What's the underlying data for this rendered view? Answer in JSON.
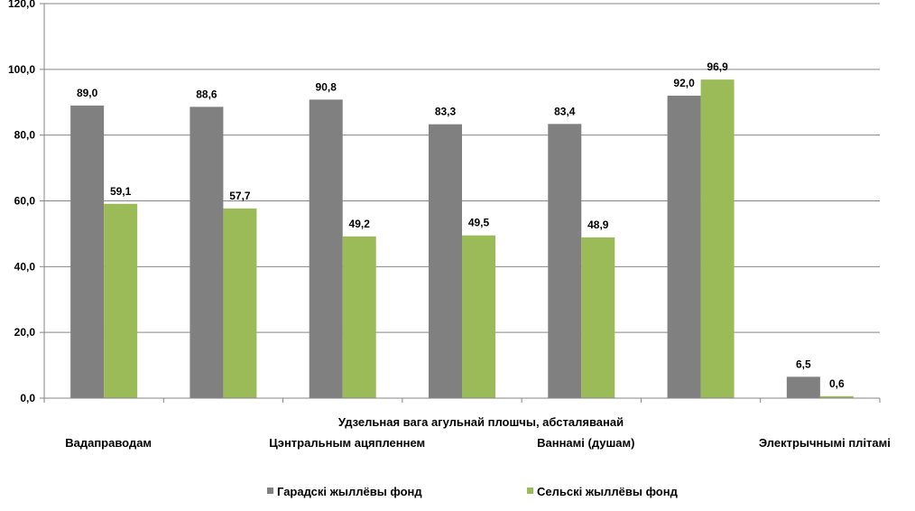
{
  "chart_data": {
    "type": "bar",
    "title": "",
    "xlabel": "Удзельная вага агульнай плошчы, абсталяванай",
    "ylabel": "",
    "ylim": [
      0,
      120
    ],
    "yticks": [
      "0,0",
      "20,0",
      "40,0",
      "60,0",
      "80,0",
      "100,0",
      "120,0"
    ],
    "grid": true,
    "legend_position": "bottom",
    "group_count": 7,
    "category_labels": [
      {
        "label": "Вадаправодам",
        "group": 0
      },
      {
        "label": "Цэнтральным ацяпленнем",
        "group": 2
      },
      {
        "label": "Ваннамі (душам)",
        "group": 4
      },
      {
        "label": "Электрычнымі плітамі",
        "group": 6
      }
    ],
    "series": [
      {
        "name": "Гарадскі жыллёвы фонд",
        "color": "#808080",
        "values": [
          89.0,
          88.6,
          90.8,
          83.3,
          83.4,
          92.0,
          6.5
        ],
        "labels": [
          "89,0",
          "88,6",
          "90,8",
          "83,3",
          "83,4",
          "92,0",
          "6,5"
        ]
      },
      {
        "name": "Сельскі жыллёвы фонд",
        "color": "#9BBB59",
        "values": [
          59.1,
          57.7,
          49.2,
          49.5,
          48.9,
          96.9,
          0.6
        ],
        "labels": [
          "59,1",
          "57,7",
          "49,2",
          "49,5",
          "48,9",
          "96,9",
          "0,6"
        ]
      }
    ]
  }
}
